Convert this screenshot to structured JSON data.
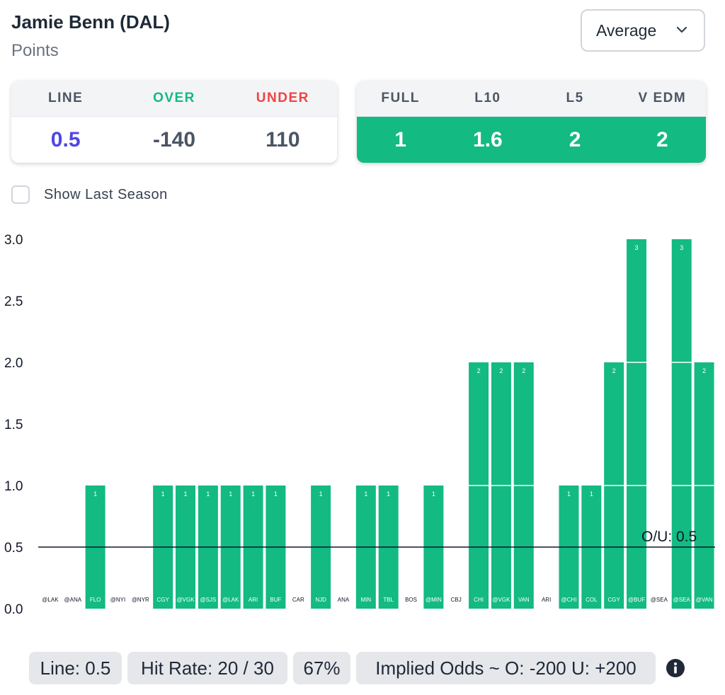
{
  "header": {
    "player": "Jamie Benn (DAL)",
    "stat": "Points",
    "mode": "Average"
  },
  "odds": {
    "line_label": "LINE",
    "over_label": "OVER",
    "under_label": "UNDER",
    "line_value": "0.5",
    "over_value": "-140",
    "under_value": "110"
  },
  "averages": {
    "columns": [
      {
        "label": "FULL",
        "value": "1"
      },
      {
        "label": "L10",
        "value": "1.6"
      },
      {
        "label": "L5",
        "value": "2"
      },
      {
        "label": "V EDM",
        "value": "2"
      }
    ]
  },
  "toggle": {
    "label": "Show Last Season"
  },
  "colors": {
    "accent": "#13ba82",
    "line_value": "#4f46e5",
    "under": "#ef4444"
  },
  "chart_data": {
    "type": "bar",
    "categories": [
      "@LAK",
      "@ANA",
      "FLO",
      "@NYI",
      "@NYR",
      "CGY",
      "@VGK",
      "@SJS",
      "@LAK",
      "ARI",
      "BUF",
      "CAR",
      "NJD",
      "ANA",
      "MIN",
      "TBL",
      "BOS",
      "@MIN",
      "CBJ",
      "CHI",
      "@VGK",
      "VAN",
      "ARI",
      "@CHI",
      "COL",
      "CGY",
      "@BUF",
      "@SEA",
      "@SEA",
      "@VAN"
    ],
    "values": [
      0,
      0,
      1,
      0,
      0,
      1,
      1,
      1,
      1,
      1,
      1,
      0,
      1,
      0,
      1,
      1,
      0,
      1,
      0,
      2,
      2,
      2,
      0,
      1,
      1,
      2,
      3,
      0,
      3,
      2
    ],
    "yticks": [
      "0.0",
      "0.5",
      "1.0",
      "1.5",
      "2.0",
      "2.5",
      "3.0"
    ],
    "ylim": [
      0,
      3
    ],
    "line": 0.5,
    "line_label": "O/U: 0.5"
  },
  "footer": {
    "line": "Line: 0.5",
    "hit_rate": "Hit Rate: 20 / 30",
    "percent": "67%",
    "implied": "Implied Odds ~ O: -200 U: +200"
  }
}
